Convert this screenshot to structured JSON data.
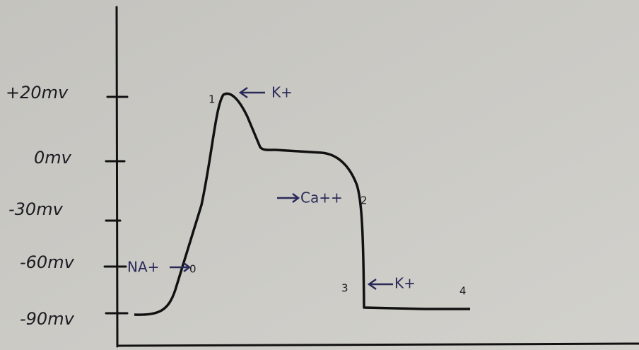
{
  "axis": {
    "ticks": [
      "+20mv",
      "0mv",
      "-30mv",
      "-60mv",
      "-90mv"
    ]
  },
  "annotations": [
    "K+",
    "Ca++",
    "NA+",
    "K+"
  ],
  "phases": [
    "0",
    "1",
    "2",
    "3",
    "4"
  ]
}
